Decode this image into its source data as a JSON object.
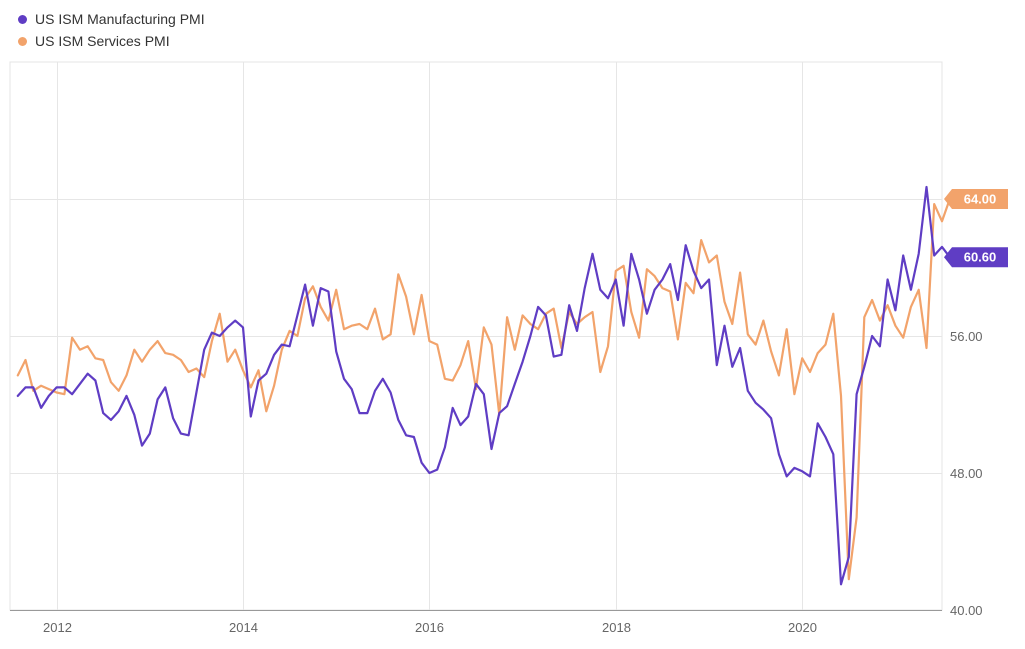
{
  "chart_data": {
    "type": "line",
    "title": "",
    "xlabel": "",
    "ylabel": "",
    "x_start": "2011-08",
    "x_end": "2021-06",
    "xlim": [
      "2011-07",
      "2021-07"
    ],
    "ylim": [
      40,
      72
    ],
    "grid": true,
    "legend_position": "top-left",
    "x_ticks": [
      {
        "label": "2012",
        "date": "2012-01"
      },
      {
        "label": "2014",
        "date": "2014-01"
      },
      {
        "label": "2016",
        "date": "2016-01"
      },
      {
        "label": "2018",
        "date": "2018-01"
      },
      {
        "label": "2020",
        "date": "2020-01"
      }
    ],
    "y_ticks": [
      {
        "label": "40.00",
        "value": 40
      },
      {
        "label": "48.00",
        "value": 48
      },
      {
        "label": "56.00",
        "value": 56
      },
      {
        "label": "64.00",
        "value": 64
      }
    ],
    "series": [
      {
        "name": "US ISM Manufacturing PMI",
        "color": "#5f3dc4",
        "last_label": "60.60",
        "values": [
          52.5,
          53.0,
          53.0,
          51.8,
          52.5,
          53.0,
          53.0,
          52.6,
          53.2,
          53.8,
          53.4,
          51.5,
          51.1,
          51.6,
          52.5,
          51.4,
          49.6,
          50.3,
          52.3,
          53.0,
          51.2,
          50.3,
          50.2,
          52.7,
          55.2,
          56.2,
          56.0,
          56.5,
          56.9,
          56.5,
          51.3,
          53.4,
          53.8,
          54.9,
          55.5,
          55.4,
          57.2,
          59.0,
          56.6,
          58.8,
          58.6,
          55.1,
          53.5,
          52.9,
          51.5,
          51.5,
          52.8,
          53.5,
          52.7,
          51.1,
          50.2,
          50.1,
          48.6,
          48.0,
          48.2,
          49.5,
          51.8,
          50.8,
          51.3,
          53.2,
          52.6,
          49.4,
          51.5,
          51.9,
          53.2,
          54.5,
          56.0,
          57.7,
          57.2,
          54.8,
          54.9,
          57.8,
          56.3,
          58.8,
          60.8,
          58.7,
          58.2,
          59.3,
          56.6,
          60.8,
          59.3,
          57.3,
          58.7,
          59.3,
          60.2,
          58.1,
          61.3,
          59.8,
          58.8,
          59.3,
          54.3,
          56.6,
          54.2,
          55.3,
          52.8,
          52.1,
          51.7,
          51.2,
          49.1,
          47.8,
          48.3,
          48.1,
          47.8,
          50.9,
          50.1,
          49.1,
          41.5,
          43.1,
          52.6,
          54.2,
          56.0,
          55.4,
          59.3,
          57.5,
          60.7,
          58.7,
          60.8,
          64.7,
          60.7,
          61.2,
          60.6
        ]
      },
      {
        "name": "US ISM Services PMI",
        "color": "#f2a36b",
        "last_label": "64.00",
        "values": [
          53.7,
          54.6,
          52.8,
          53.1,
          52.9,
          52.7,
          52.6,
          55.9,
          55.2,
          55.4,
          54.7,
          54.6,
          53.3,
          52.8,
          53.7,
          55.2,
          54.5,
          55.2,
          55.7,
          55.0,
          54.9,
          54.6,
          53.9,
          54.1,
          53.6,
          55.7,
          57.3,
          54.5,
          55.2,
          54.0,
          53.0,
          54.0,
          51.6,
          53.1,
          55.2,
          56.3,
          56.0,
          58.2,
          58.9,
          57.7,
          56.9,
          58.7,
          56.4,
          56.6,
          56.7,
          56.4,
          57.6,
          55.8,
          56.1,
          59.6,
          58.3,
          56.1,
          58.4,
          55.7,
          55.5,
          53.5,
          53.4,
          54.3,
          55.7,
          52.9,
          56.5,
          55.5,
          51.4,
          57.1,
          55.2,
          57.2,
          56.7,
          56.4,
          57.3,
          57.6,
          55.3,
          57.4,
          56.7,
          57.1,
          57.4,
          53.9,
          55.4,
          59.8,
          60.1,
          57.4,
          55.9,
          59.9,
          59.5,
          58.8,
          58.6,
          55.8,
          59.1,
          58.5,
          61.6,
          60.3,
          60.7,
          58.0,
          56.7,
          59.7,
          56.1,
          55.5,
          56.9,
          55.1,
          53.7,
          56.4,
          52.6,
          54.7,
          53.9,
          55.0,
          55.5,
          57.3,
          52.5,
          41.8,
          45.4,
          57.1,
          58.1,
          56.9,
          57.8,
          56.6,
          55.9,
          57.7,
          58.7,
          55.3,
          63.7,
          62.7,
          64.0
        ]
      }
    ]
  }
}
